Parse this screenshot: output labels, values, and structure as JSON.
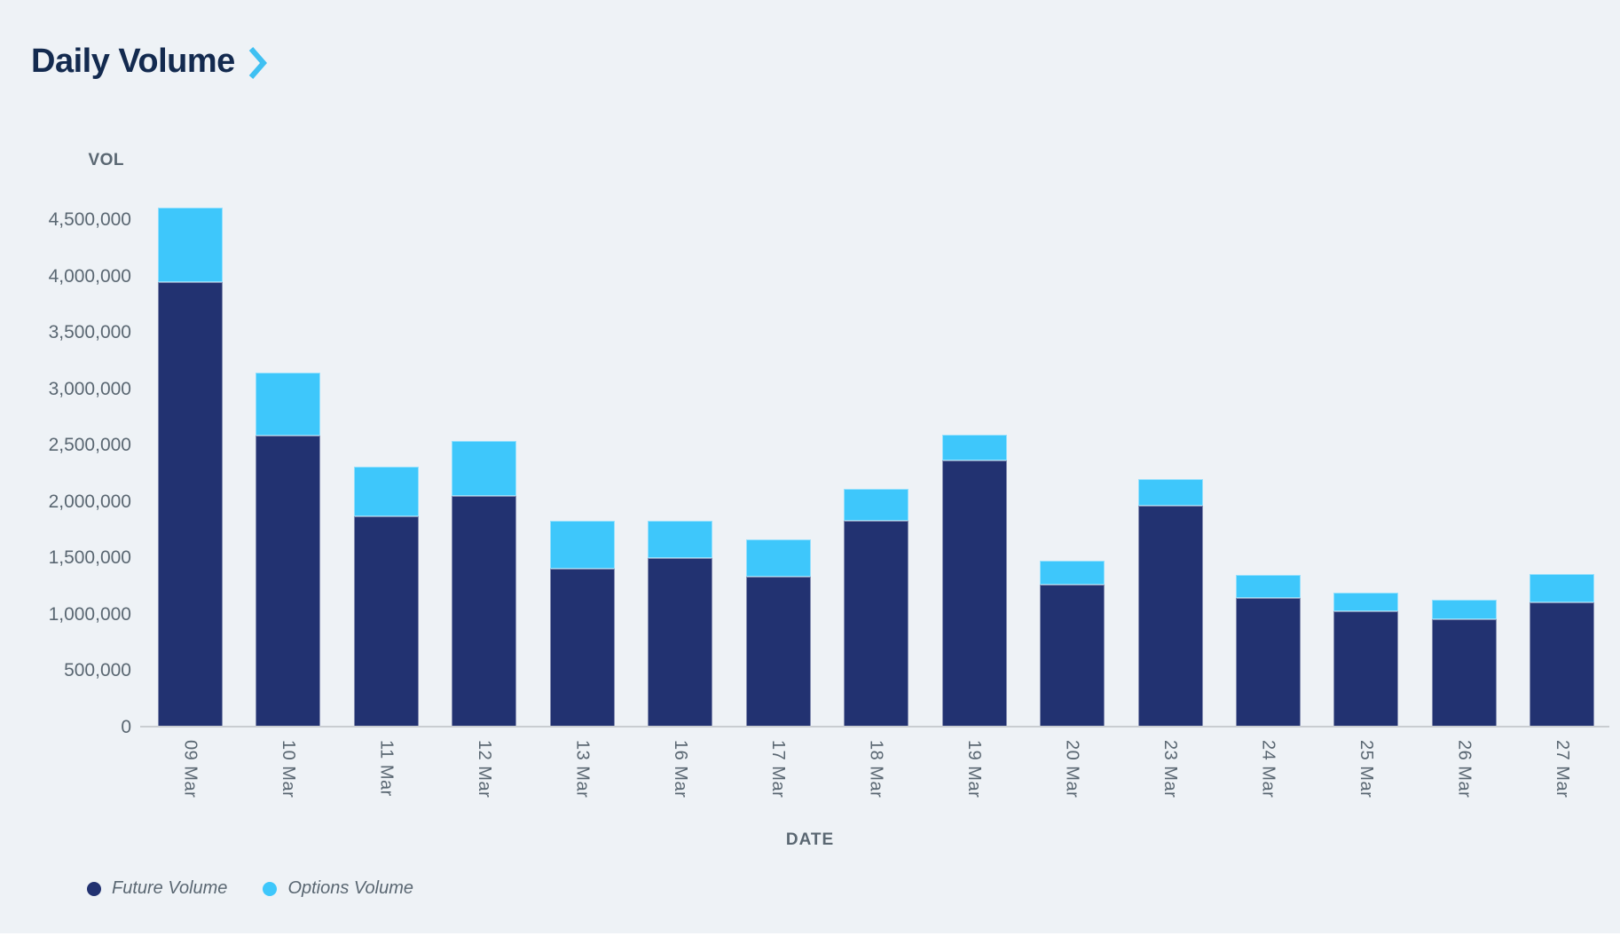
{
  "header": {
    "title": "Daily Volume"
  },
  "chart_data": {
    "type": "bar",
    "stacked": true,
    "title": "Daily Volume",
    "xlabel": "DATE",
    "ylabel": "VOL",
    "ylim": [
      0,
      4500000
    ],
    "grid": false,
    "legend_position": "bottom-left",
    "x_tick_rotation_deg": 90,
    "categories": [
      "09 Mar",
      "10 Mar",
      "11 Mar",
      "12 Mar",
      "13 Mar",
      "16 Mar",
      "17 Mar",
      "18 Mar",
      "19 Mar",
      "20 Mar",
      "23 Mar",
      "24 Mar",
      "25 Mar",
      "26 Mar",
      "27 Mar"
    ],
    "series": [
      {
        "name": "Future Volume",
        "color": "#223271",
        "values": [
          3950000,
          2590000,
          1870000,
          2050000,
          1410000,
          1500000,
          1340000,
          1830000,
          2370000,
          1270000,
          1970000,
          1150000,
          1030000,
          960000,
          1110000
        ]
      },
      {
        "name": "Options Volume",
        "color": "#3EC7FB",
        "values": [
          660000,
          560000,
          440000,
          490000,
          420000,
          330000,
          330000,
          290000,
          230000,
          210000,
          230000,
          200000,
          170000,
          170000,
          250000
        ]
      }
    ],
    "totals": [
      4610000,
      3150000,
      2310000,
      2540000,
      1830000,
      1830000,
      1670000,
      2120000,
      2600000,
      1480000,
      2200000,
      1350000,
      1200000,
      1130000,
      1360000
    ],
    "ytick_values": [
      0,
      500000,
      1000000,
      1500000,
      2000000,
      2500000,
      3000000,
      3500000,
      4000000,
      4500000
    ],
    "ytick_labels": [
      "0",
      "500,000",
      "1,000,000",
      "1,500,000",
      "2,000,000",
      "2,500,000",
      "3,000,000",
      "3,500,000",
      "4,000,000",
      "4,500,000"
    ]
  },
  "colors": {
    "background": "#EEF2F6",
    "title": "#132A4F",
    "chevron": "#3FC0F2",
    "axis_text": "#5A6772",
    "axis_line": "#C9CDD1",
    "future": "#223271",
    "options": "#3EC7FB"
  }
}
